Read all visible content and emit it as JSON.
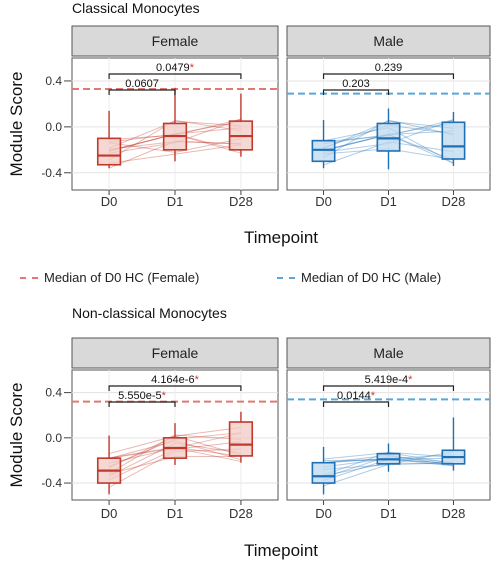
{
  "figure": {
    "legend": [
      {
        "label": "Median of D0 HC (Female)",
        "color": "#e07a70"
      },
      {
        "label": "Median of D0 HC (Male)",
        "color": "#5aa6da"
      }
    ]
  },
  "chart_data": [
    {
      "type": "box",
      "title": "Classical Monocytes",
      "xlabel": "Timepoint",
      "ylabel": "Module Score",
      "x": [
        "D0",
        "D1",
        "D28"
      ],
      "yticks": [
        -0.4,
        0.0,
        0.4
      ],
      "ylim": [
        -0.55,
        0.6
      ],
      "grid": true,
      "panels": [
        {
          "strip": "Female",
          "color": "#c0392b",
          "fill": "#f2c9c4",
          "reference": {
            "label": "Median of D0 HC (Female)",
            "value": 0.33
          },
          "boxes": [
            {
              "x": "D0",
              "min": -0.36,
              "q1": -0.33,
              "median": -0.25,
              "q3": -0.1,
              "max": 0.14
            },
            {
              "x": "D1",
              "min": -0.3,
              "q1": -0.2,
              "median": -0.08,
              "q3": 0.03,
              "max": 0.34
            },
            {
              "x": "D28",
              "min": -0.26,
              "q1": -0.2,
              "median": -0.08,
              "q3": 0.05,
              "max": 0.29
            }
          ],
          "comparisons": [
            {
              "from": "D0",
              "to": "D28",
              "label": "0.0479",
              "significant": true
            },
            {
              "from": "D0",
              "to": "D1",
              "label": "0.0607",
              "significant": false
            }
          ]
        },
        {
          "strip": "Male",
          "color": "#1f6fb4",
          "fill": "#bcd8ef",
          "reference": {
            "label": "Median of D0 HC (Male)",
            "value": 0.29
          },
          "boxes": [
            {
              "x": "D0",
              "min": -0.36,
              "q1": -0.3,
              "median": -0.2,
              "q3": -0.12,
              "max": 0.06
            },
            {
              "x": "D1",
              "min": -0.37,
              "q1": -0.21,
              "median": -0.1,
              "q3": 0.03,
              "max": 0.16
            },
            {
              "x": "D28",
              "min": -0.34,
              "q1": -0.28,
              "median": -0.17,
              "q3": 0.04,
              "max": 0.13
            }
          ],
          "comparisons": [
            {
              "from": "D0",
              "to": "D28",
              "label": "0.239",
              "significant": false
            },
            {
              "from": "D0",
              "to": "D1",
              "label": "0.203",
              "significant": false
            }
          ]
        }
      ]
    },
    {
      "type": "box",
      "title": "Non-classical Monocytes",
      "xlabel": "Timepoint",
      "ylabel": "Module Score",
      "x": [
        "D0",
        "D1",
        "D28"
      ],
      "yticks": [
        -0.4,
        0.0,
        0.4
      ],
      "ylim": [
        -0.55,
        0.6
      ],
      "grid": true,
      "panels": [
        {
          "strip": "Female",
          "color": "#c0392b",
          "fill": "#f2c9c4",
          "reference": {
            "label": "Median of D0 HC (Female)",
            "value": 0.32
          },
          "boxes": [
            {
              "x": "D0",
              "min": -0.5,
              "q1": -0.4,
              "median": -0.29,
              "q3": -0.18,
              "max": 0.02
            },
            {
              "x": "D1",
              "min": -0.24,
              "q1": -0.18,
              "median": -0.09,
              "q3": 0.0,
              "max": 0.13
            },
            {
              "x": "D28",
              "min": -0.22,
              "q1": -0.16,
              "median": -0.06,
              "q3": 0.14,
              "max": 0.23
            }
          ],
          "comparisons": [
            {
              "from": "D0",
              "to": "D28",
              "label": "4.164e-6",
              "significant": true
            },
            {
              "from": "D0",
              "to": "D1",
              "label": "5.550e-5",
              "significant": true
            }
          ]
        },
        {
          "strip": "Male",
          "color": "#1f6fb4",
          "fill": "#bcd8ef",
          "reference": {
            "label": "Median of D0 HC (Male)",
            "value": 0.34
          },
          "boxes": [
            {
              "x": "D0",
              "min": -0.5,
              "q1": -0.4,
              "median": -0.34,
              "q3": -0.22,
              "max": -0.08
            },
            {
              "x": "D1",
              "min": -0.3,
              "q1": -0.23,
              "median": -0.19,
              "q3": -0.14,
              "max": -0.05
            },
            {
              "x": "D28",
              "min": -0.29,
              "q1": -0.23,
              "median": -0.17,
              "q3": -0.11,
              "max": 0.18
            }
          ],
          "comparisons": [
            {
              "from": "D0",
              "to": "D28",
              "label": "5.419e-4",
              "significant": true
            },
            {
              "from": "D0",
              "to": "D1",
              "label": "0.0144",
              "significant": true
            }
          ]
        }
      ]
    }
  ]
}
